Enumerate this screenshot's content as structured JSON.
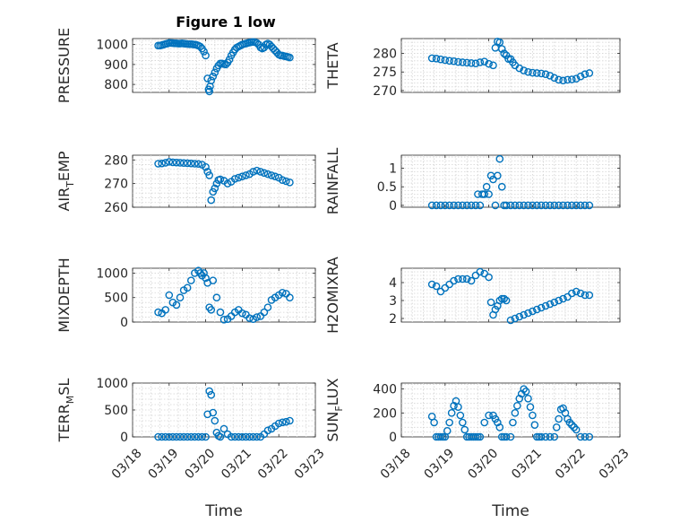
{
  "figure_title": "Figure 1 low",
  "chart_data": [
    {
      "type": "scatter",
      "ylabel": "PRESSURE",
      "xlabel": "",
      "xlim": [
        0,
        5
      ],
      "ylim": [
        760,
        1030
      ],
      "yticks": [
        800,
        900,
        1000
      ],
      "xticks": [
        0,
        1,
        2,
        3,
        4,
        5
      ],
      "x": [
        0.7,
        0.75,
        0.8,
        0.85,
        0.9,
        0.95,
        1.0,
        1.05,
        1.1,
        1.15,
        1.2,
        1.25,
        1.3,
        1.35,
        1.4,
        1.45,
        1.5,
        1.55,
        1.6,
        1.65,
        1.7,
        1.75,
        1.8,
        1.85,
        1.9,
        1.95,
        2.0,
        2.05,
        2.08,
        2.1,
        2.12,
        2.15,
        2.2,
        2.25,
        2.3,
        2.35,
        2.4,
        2.45,
        2.5,
        2.55,
        2.6,
        2.65,
        2.7,
        2.75,
        2.8,
        2.85,
        2.9,
        2.95,
        3.0,
        3.05,
        3.1,
        3.15,
        3.2,
        3.25,
        3.3,
        3.35,
        3.4,
        3.45,
        3.5,
        3.55,
        3.6,
        3.65,
        3.7,
        3.75,
        3.8,
        3.85,
        3.9,
        3.95,
        4.0,
        4.05,
        4.1,
        4.15,
        4.2,
        4.25,
        4.3
      ],
      "y": [
        995,
        995,
        997,
        1000,
        1003,
        1005,
        1008,
        1008,
        1007,
        1006,
        1006,
        1005,
        1005,
        1006,
        1005,
        1004,
        1003,
        1002,
        1002,
        1001,
        1000,
        998,
        995,
        990,
        980,
        965,
        945,
        830,
        775,
        765,
        790,
        820,
        840,
        860,
        880,
        895,
        905,
        905,
        902,
        900,
        910,
        925,
        945,
        960,
        975,
        985,
        990,
        995,
        1000,
        1003,
        1005,
        1008,
        1010,
        1012,
        1013,
        1012,
        1008,
        1000,
        985,
        980,
        985,
        1000,
        1005,
        1000,
        990,
        980,
        970,
        960,
        950,
        945,
        945,
        942,
        940,
        938,
        935
      ]
    },
    {
      "type": "scatter",
      "ylabel": "THETA",
      "xlabel": "",
      "xlim": [
        0,
        5
      ],
      "ylim": [
        269.5,
        284
      ],
      "yticks": [
        270,
        275,
        280
      ],
      "xticks": [
        0,
        1,
        2,
        3,
        4,
        5
      ],
      "x": [
        0.7,
        0.8,
        0.9,
        1.0,
        1.1,
        1.2,
        1.3,
        1.4,
        1.5,
        1.6,
        1.7,
        1.8,
        1.9,
        2.0,
        2.1,
        2.15,
        2.2,
        2.25,
        2.3,
        2.35,
        2.4,
        2.45,
        2.5,
        2.55,
        2.6,
        2.7,
        2.8,
        2.9,
        3.0,
        3.1,
        3.2,
        3.3,
        3.4,
        3.5,
        3.6,
        3.7,
        3.8,
        3.9,
        4.0,
        4.1,
        4.2,
        4.3
      ],
      "y": [
        278.7,
        278.6,
        278.4,
        278.2,
        278.0,
        277.9,
        277.7,
        277.6,
        277.5,
        277.4,
        277.3,
        277.6,
        277.8,
        277.2,
        276.8,
        281.5,
        283.2,
        283.0,
        281.2,
        280.0,
        279.5,
        278.5,
        278.5,
        277.6,
        276.8,
        276.0,
        275.4,
        275.0,
        274.8,
        274.7,
        274.6,
        274.4,
        274.0,
        273.4,
        272.9,
        272.7,
        272.9,
        273.0,
        273.2,
        273.8,
        274.4,
        274.7
      ]
    },
    {
      "type": "scatter",
      "ylabel": "AIR_TEMP",
      "xlabel": "",
      "xlim": [
        0,
        5
      ],
      "ylim": [
        260,
        282
      ],
      "yticks": [
        260,
        270,
        280
      ],
      "xticks": [
        0,
        1,
        2,
        3,
        4,
        5
      ],
      "x": [
        0.7,
        0.8,
        0.9,
        1.0,
        1.1,
        1.2,
        1.3,
        1.4,
        1.5,
        1.6,
        1.7,
        1.8,
        1.9,
        2.0,
        2.05,
        2.1,
        2.15,
        2.2,
        2.25,
        2.3,
        2.35,
        2.4,
        2.5,
        2.6,
        2.7,
        2.8,
        2.9,
        3.0,
        3.1,
        3.2,
        3.3,
        3.4,
        3.5,
        3.6,
        3.7,
        3.8,
        3.9,
        4.0,
        4.1,
        4.2,
        4.3
      ],
      "y": [
        278.4,
        278.5,
        278.8,
        279.2,
        279.0,
        278.9,
        278.8,
        278.7,
        278.6,
        278.5,
        278.4,
        278.3,
        278.0,
        277.0,
        275.0,
        273.5,
        263.0,
        266.5,
        268.0,
        270.0,
        271.5,
        271.8,
        271.2,
        270.0,
        270.8,
        272.0,
        272.5,
        273.0,
        273.5,
        274.0,
        275.0,
        275.5,
        275.0,
        274.5,
        274.0,
        273.5,
        273.0,
        272.5,
        271.5,
        271.0,
        270.5
      ]
    },
    {
      "type": "scatter",
      "ylabel": "RAINFALL",
      "xlabel": "",
      "xlim": [
        0,
        5
      ],
      "ylim": [
        -0.05,
        1.35
      ],
      "yticks": [
        0,
        0.5,
        1
      ],
      "xticks": [
        0,
        1,
        2,
        3,
        4,
        5
      ],
      "x": [
        0.7,
        0.8,
        0.9,
        1.0,
        1.1,
        1.2,
        1.3,
        1.4,
        1.5,
        1.6,
        1.7,
        1.75,
        1.8,
        1.85,
        1.9,
        1.95,
        2.0,
        2.05,
        2.1,
        2.15,
        2.2,
        2.25,
        2.3,
        2.35,
        2.4,
        2.5,
        2.6,
        2.7,
        2.8,
        2.9,
        3.0,
        3.1,
        3.2,
        3.3,
        3.4,
        3.5,
        3.6,
        3.7,
        3.8,
        3.9,
        4.0,
        4.1,
        4.2,
        4.3
      ],
      "y": [
        0,
        0,
        0,
        0,
        0,
        0,
        0,
        0,
        0,
        0,
        0,
        0.3,
        0,
        0.3,
        0.3,
        0.5,
        0.3,
        0.8,
        0.7,
        0,
        0.8,
        1.25,
        0.5,
        0,
        0,
        0,
        0,
        0,
        0,
        0,
        0,
        0,
        0,
        0,
        0,
        0,
        0,
        0,
        0,
        0,
        0,
        0,
        0,
        0
      ]
    },
    {
      "type": "scatter",
      "ylabel": "MIXDEPTH",
      "xlabel": "",
      "xlim": [
        0,
        5
      ],
      "ylim": [
        0,
        1100
      ],
      "yticks": [
        0,
        500,
        1000
      ],
      "xticks": [
        0,
        1,
        2,
        3,
        4,
        5
      ],
      "x": [
        0.7,
        0.8,
        0.9,
        1.0,
        1.1,
        1.2,
        1.3,
        1.4,
        1.5,
        1.6,
        1.7,
        1.8,
        1.85,
        1.9,
        1.95,
        2.0,
        2.05,
        2.1,
        2.15,
        2.2,
        2.3,
        2.4,
        2.5,
        2.6,
        2.7,
        2.8,
        2.9,
        3.0,
        3.1,
        3.2,
        3.3,
        3.4,
        3.5,
        3.6,
        3.7,
        3.8,
        3.9,
        4.0,
        4.1,
        4.2,
        4.3
      ],
      "y": [
        200,
        180,
        250,
        550,
        400,
        350,
        500,
        650,
        700,
        850,
        1000,
        1050,
        1000,
        950,
        1000,
        900,
        800,
        300,
        250,
        850,
        500,
        200,
        50,
        60,
        120,
        200,
        250,
        180,
        150,
        80,
        60,
        100,
        120,
        200,
        300,
        450,
        500,
        550,
        600,
        580,
        500
      ]
    },
    {
      "type": "scatter",
      "ylabel": "H2OMIXRA",
      "xlabel": "",
      "xlim": [
        0,
        5
      ],
      "ylim": [
        1.8,
        4.8
      ],
      "yticks": [
        2,
        3,
        4
      ],
      "xticks": [
        0,
        1,
        2,
        3,
        4,
        5
      ],
      "x": [
        0.7,
        0.8,
        0.9,
        1.0,
        1.1,
        1.2,
        1.3,
        1.4,
        1.5,
        1.6,
        1.7,
        1.8,
        1.9,
        2.0,
        2.05,
        2.1,
        2.15,
        2.2,
        2.25,
        2.3,
        2.35,
        2.4,
        2.5,
        2.6,
        2.7,
        2.8,
        2.9,
        3.0,
        3.1,
        3.2,
        3.3,
        3.4,
        3.5,
        3.6,
        3.7,
        3.8,
        3.9,
        4.0,
        4.1,
        4.2,
        4.3
      ],
      "y": [
        3.9,
        3.8,
        3.5,
        3.7,
        3.9,
        4.1,
        4.2,
        4.2,
        4.2,
        4.1,
        4.4,
        4.6,
        4.5,
        4.3,
        2.9,
        2.2,
        2.5,
        2.7,
        3.0,
        3.1,
        3.1,
        3.0,
        1.9,
        2.0,
        2.1,
        2.2,
        2.3,
        2.4,
        2.5,
        2.6,
        2.7,
        2.8,
        2.9,
        3.0,
        3.1,
        3.2,
        3.4,
        3.5,
        3.4,
        3.3,
        3.3
      ]
    },
    {
      "type": "scatter",
      "ylabel": "TERR_MSL",
      "xlabel": "Time",
      "xlim": [
        0,
        5
      ],
      "ylim": [
        0,
        1000
      ],
      "yticks": [
        0,
        500,
        1000
      ],
      "xticks": [
        0,
        1,
        2,
        3,
        4,
        5
      ],
      "xticklabels": [
        "03/18",
        "03/19",
        "03/20",
        "03/21",
        "03/22",
        "03/23"
      ],
      "x": [
        0.7,
        0.8,
        0.9,
        1.0,
        1.1,
        1.2,
        1.3,
        1.4,
        1.5,
        1.6,
        1.7,
        1.8,
        1.9,
        2.0,
        2.05,
        2.1,
        2.15,
        2.2,
        2.25,
        2.3,
        2.35,
        2.4,
        2.5,
        2.6,
        2.7,
        2.8,
        2.9,
        3.0,
        3.1,
        3.2,
        3.3,
        3.4,
        3.5,
        3.6,
        3.7,
        3.8,
        3.9,
        4.0,
        4.1,
        4.2,
        4.3
      ],
      "y": [
        0,
        0,
        0,
        0,
        0,
        0,
        0,
        0,
        0,
        0,
        0,
        0,
        0,
        0,
        420,
        850,
        780,
        450,
        300,
        80,
        20,
        0,
        150,
        50,
        0,
        0,
        0,
        0,
        0,
        0,
        0,
        0,
        0,
        50,
        120,
        150,
        200,
        250,
        270,
        280,
        300
      ]
    },
    {
      "type": "scatter",
      "ylabel": "SUN_FLUX",
      "xlabel": "Time",
      "xlim": [
        0,
        5
      ],
      "ylim": [
        0,
        450
      ],
      "yticks": [
        0,
        200,
        400
      ],
      "xticks": [
        0,
        1,
        2,
        3,
        4,
        5
      ],
      "xticklabels": [
        "03/18",
        "03/19",
        "03/20",
        "03/21",
        "03/22",
        "03/23"
      ],
      "x": [
        0.7,
        0.75,
        0.8,
        0.85,
        0.9,
        0.95,
        1.0,
        1.05,
        1.1,
        1.15,
        1.2,
        1.25,
        1.3,
        1.35,
        1.4,
        1.45,
        1.5,
        1.55,
        1.6,
        1.65,
        1.7,
        1.75,
        1.8,
        1.9,
        2.0,
        2.1,
        2.15,
        2.2,
        2.25,
        2.3,
        2.35,
        2.4,
        2.5,
        2.55,
        2.6,
        2.65,
        2.7,
        2.75,
        2.8,
        2.85,
        2.9,
        2.95,
        3.0,
        3.05,
        3.1,
        3.15,
        3.2,
        3.3,
        3.4,
        3.5,
        3.55,
        3.6,
        3.65,
        3.7,
        3.75,
        3.8,
        3.85,
        3.9,
        3.95,
        4.0,
        4.1,
        4.2,
        4.3
      ],
      "y": [
        170,
        120,
        0,
        0,
        0,
        0,
        0,
        50,
        120,
        200,
        260,
        300,
        250,
        180,
        120,
        60,
        0,
        0,
        0,
        0,
        0,
        0,
        0,
        120,
        180,
        180,
        150,
        120,
        80,
        0,
        0,
        0,
        0,
        120,
        200,
        260,
        320,
        360,
        400,
        380,
        320,
        250,
        180,
        100,
        0,
        0,
        0,
        0,
        0,
        0,
        80,
        150,
        230,
        240,
        200,
        150,
        120,
        100,
        80,
        60,
        0,
        0,
        0
      ]
    }
  ]
}
